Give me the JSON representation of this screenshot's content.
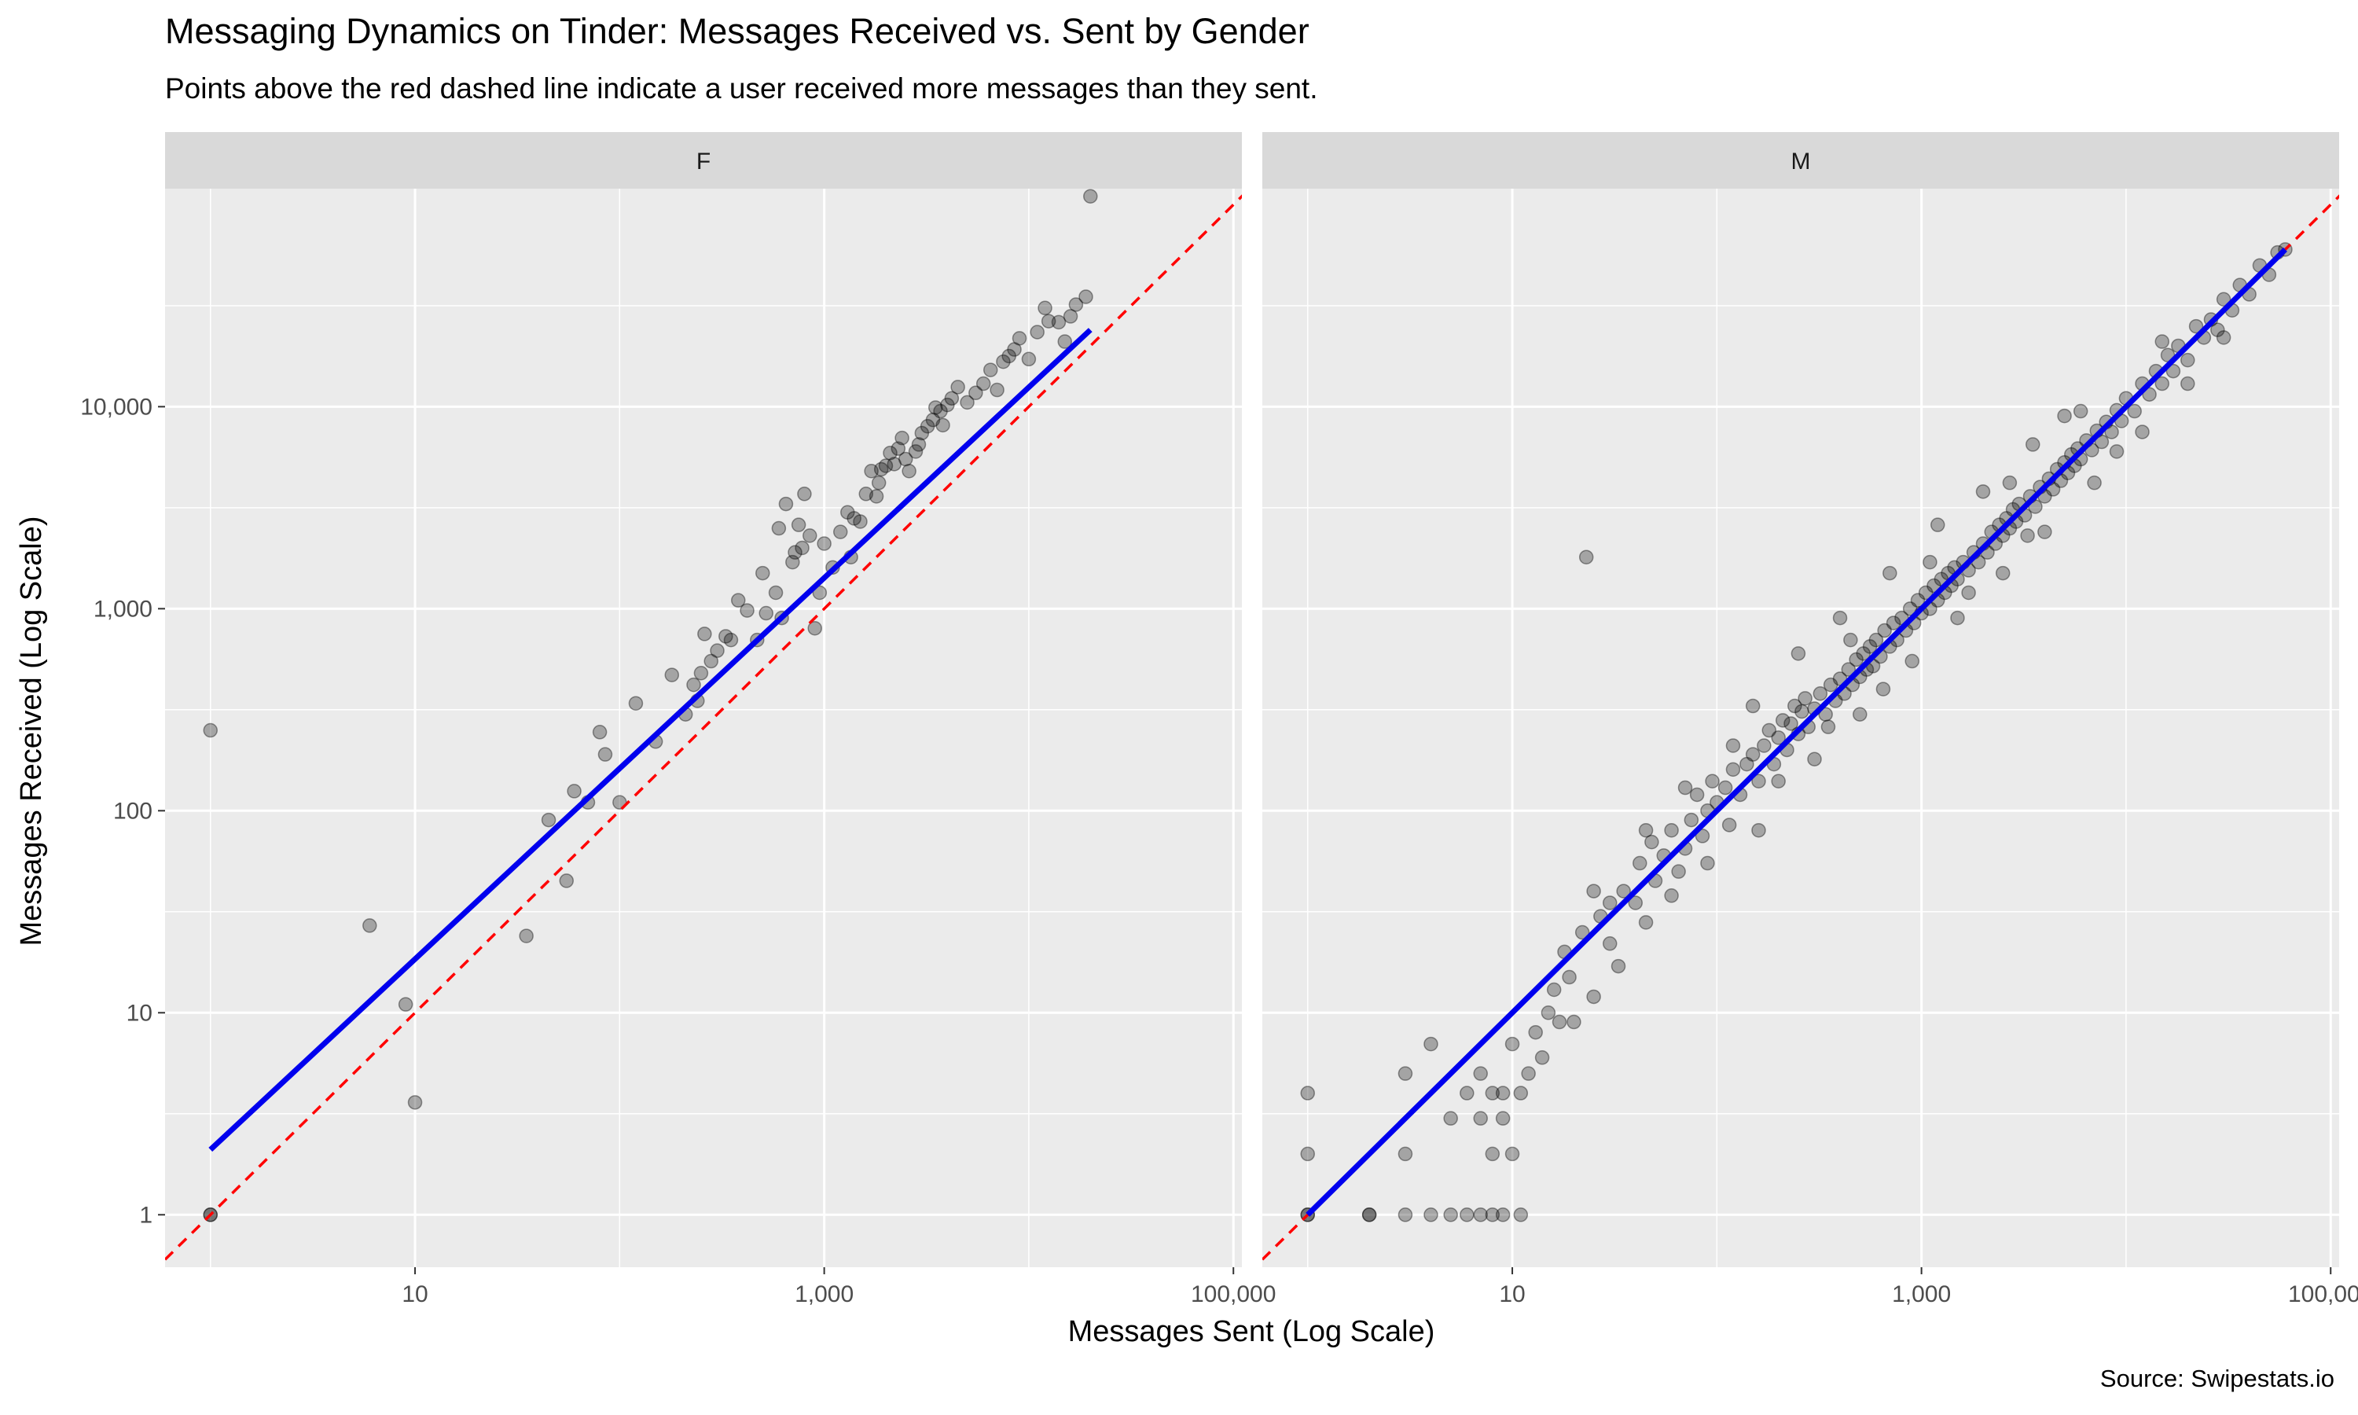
{
  "title": "Messaging Dynamics on Tinder: Messages Received vs. Sent by Gender",
  "subtitle": "Points above the red dashed line indicate a user received more messages than they sent.",
  "caption": "Source: Swipestats.io",
  "colors": {
    "panel_bg": "#EBEBEB",
    "strip_bg": "#D9D9D9",
    "grid": "#FFFFFF",
    "point": "#000000",
    "identity_line": "#FF0000",
    "fit_line": "#0000EE"
  },
  "chart_data": {
    "type": "scatter",
    "xlabel": "Messages Sent (Log Scale)",
    "ylabel": "Messages Received (Log Scale)",
    "x_scale": "log10",
    "y_scale": "log10",
    "xlim": [
      0.6,
      110000
    ],
    "ylim": [
      0.55,
      120000
    ],
    "x_ticks": [
      10,
      1000,
      100000
    ],
    "x_tick_labels": [
      "10",
      "1,000",
      "100,000"
    ],
    "y_ticks": [
      1,
      10,
      100,
      1000,
      10000
    ],
    "y_tick_labels": [
      "1",
      "10",
      "100",
      "1,000",
      "10,000"
    ],
    "grid": true,
    "reference_line": {
      "style": "dashed",
      "color": "#FF0000",
      "slope": 1,
      "intercept": 0
    },
    "panels": [
      {
        "facet": "F",
        "fit": {
          "from": [
            1,
            2.1
          ],
          "to": [
            20000,
            24000
          ]
        },
        "points": [
          [
            1,
            1
          ],
          [
            1,
            1
          ],
          [
            1,
            250
          ],
          [
            6,
            27
          ],
          [
            9,
            11
          ],
          [
            10,
            3.6
          ],
          [
            35,
            24
          ],
          [
            45,
            90
          ],
          [
            55,
            45
          ],
          [
            60,
            125
          ],
          [
            70,
            110
          ],
          [
            80,
            245
          ],
          [
            85,
            190
          ],
          [
            100,
            110
          ],
          [
            120,
            340
          ],
          [
            150,
            220
          ],
          [
            180,
            470
          ],
          [
            210,
            300
          ],
          [
            230,
            420
          ],
          [
            240,
            350
          ],
          [
            250,
            480
          ],
          [
            260,
            750
          ],
          [
            280,
            550
          ],
          [
            300,
            620
          ],
          [
            330,
            730
          ],
          [
            350,
            700
          ],
          [
            380,
            1100
          ],
          [
            420,
            980
          ],
          [
            470,
            700
          ],
          [
            500,
            1500
          ],
          [
            520,
            950
          ],
          [
            580,
            1200
          ],
          [
            600,
            2500
          ],
          [
            620,
            900
          ],
          [
            650,
            3300
          ],
          [
            700,
            1700
          ],
          [
            720,
            1900
          ],
          [
            750,
            2600
          ],
          [
            780,
            2000
          ],
          [
            800,
            3700
          ],
          [
            850,
            2300
          ],
          [
            900,
            800
          ],
          [
            950,
            1200
          ],
          [
            1000,
            2100
          ],
          [
            1100,
            1600
          ],
          [
            1200,
            2400
          ],
          [
            1300,
            3000
          ],
          [
            1350,
            1800
          ],
          [
            1400,
            2800
          ],
          [
            1500,
            2700
          ],
          [
            1600,
            3700
          ],
          [
            1700,
            4800
          ],
          [
            1800,
            3600
          ],
          [
            1850,
            4200
          ],
          [
            1900,
            4900
          ],
          [
            2000,
            5100
          ],
          [
            2100,
            5900
          ],
          [
            2200,
            5200
          ],
          [
            2300,
            6200
          ],
          [
            2400,
            7000
          ],
          [
            2500,
            5500
          ],
          [
            2600,
            4800
          ],
          [
            2800,
            6000
          ],
          [
            2900,
            6500
          ],
          [
            3000,
            7400
          ],
          [
            3200,
            8000
          ],
          [
            3400,
            8600
          ],
          [
            3500,
            9900
          ],
          [
            3700,
            9500
          ],
          [
            3800,
            8100
          ],
          [
            4000,
            10200
          ],
          [
            4200,
            11000
          ],
          [
            4500,
            12500
          ],
          [
            5000,
            10500
          ],
          [
            5500,
            11700
          ],
          [
            6000,
            13000
          ],
          [
            6500,
            15200
          ],
          [
            7000,
            12100
          ],
          [
            7500,
            16700
          ],
          [
            8000,
            17800
          ],
          [
            8500,
            19200
          ],
          [
            9000,
            21800
          ],
          [
            10000,
            17200
          ],
          [
            11000,
            23400
          ],
          [
            12000,
            30800
          ],
          [
            12500,
            26500
          ],
          [
            14000,
            26200
          ],
          [
            15000,
            21000
          ],
          [
            16000,
            28000
          ],
          [
            17000,
            32000
          ],
          [
            19000,
            35000
          ],
          [
            20000,
            110000
          ]
        ]
      },
      {
        "facet": "M",
        "fit": {
          "from": [
            1,
            1
          ],
          "to": [
            60000,
            60000
          ]
        },
        "points": [
          [
            1,
            1
          ],
          [
            1,
            1
          ],
          [
            1,
            2
          ],
          [
            1,
            4
          ],
          [
            2,
            1
          ],
          [
            2,
            1
          ],
          [
            3,
            1
          ],
          [
            3,
            2
          ],
          [
            3,
            5
          ],
          [
            4,
            1
          ],
          [
            4,
            7
          ],
          [
            5,
            1
          ],
          [
            5,
            3
          ],
          [
            6,
            1
          ],
          [
            6,
            4
          ],
          [
            7,
            1
          ],
          [
            7,
            3
          ],
          [
            7,
            5
          ],
          [
            8,
            1
          ],
          [
            8,
            2
          ],
          [
            8,
            4
          ],
          [
            9,
            1
          ],
          [
            9,
            3
          ],
          [
            9,
            4
          ],
          [
            10,
            2
          ],
          [
            10,
            7
          ],
          [
            11,
            1
          ],
          [
            12,
            5
          ],
          [
            13,
            8
          ],
          [
            14,
            6
          ],
          [
            15,
            10
          ],
          [
            16,
            13
          ],
          [
            18,
            20
          ],
          [
            19,
            15
          ],
          [
            20,
            9
          ],
          [
            22,
            25
          ],
          [
            25,
            12
          ],
          [
            27,
            30
          ],
          [
            30,
            22
          ],
          [
            33,
            17
          ],
          [
            35,
            40
          ],
          [
            40,
            35
          ],
          [
            42,
            55
          ],
          [
            45,
            28
          ],
          [
            48,
            70
          ],
          [
            50,
            45
          ],
          [
            55,
            60
          ],
          [
            60,
            80
          ],
          [
            65,
            50
          ],
          [
            70,
            65
          ],
          [
            75,
            90
          ],
          [
            80,
            120
          ],
          [
            85,
            75
          ],
          [
            90,
            100
          ],
          [
            95,
            140
          ],
          [
            100,
            110
          ],
          [
            110,
            130
          ],
          [
            115,
            85
          ],
          [
            120,
            160
          ],
          [
            130,
            120
          ],
          [
            140,
            170
          ],
          [
            150,
            190
          ],
          [
            160,
            140
          ],
          [
            170,
            210
          ],
          [
            180,
            250
          ],
          [
            190,
            170
          ],
          [
            200,
            230
          ],
          [
            210,
            280
          ],
          [
            220,
            200
          ],
          [
            230,
            270
          ],
          [
            240,
            330
          ],
          [
            250,
            240
          ],
          [
            260,
            310
          ],
          [
            270,
            360
          ],
          [
            280,
            260
          ],
          [
            300,
            320
          ],
          [
            320,
            380
          ],
          [
            340,
            300
          ],
          [
            360,
            420
          ],
          [
            380,
            350
          ],
          [
            400,
            450
          ],
          [
            420,
            380
          ],
          [
            440,
            500
          ],
          [
            460,
            420
          ],
          [
            480,
            560
          ],
          [
            500,
            460
          ],
          [
            520,
            600
          ],
          [
            540,
            500
          ],
          [
            560,
            650
          ],
          [
            580,
            520
          ],
          [
            600,
            700
          ],
          [
            630,
            580
          ],
          [
            660,
            780
          ],
          [
            700,
            650
          ],
          [
            730,
            850
          ],
          [
            760,
            700
          ],
          [
            800,
            900
          ],
          [
            840,
            780
          ],
          [
            880,
            1000
          ],
          [
            920,
            850
          ],
          [
            960,
            1100
          ],
          [
            1000,
            950
          ],
          [
            1050,
            1200
          ],
          [
            1100,
            1000
          ],
          [
            1150,
            1300
          ],
          [
            1200,
            1100
          ],
          [
            1250,
            1400
          ],
          [
            1300,
            1200
          ],
          [
            1350,
            1500
          ],
          [
            1400,
            1300
          ],
          [
            1450,
            1600
          ],
          [
            1500,
            1400
          ],
          [
            1600,
            1700
          ],
          [
            1700,
            1550
          ],
          [
            1800,
            1900
          ],
          [
            1900,
            1700
          ],
          [
            2000,
            2100
          ],
          [
            2100,
            1900
          ],
          [
            2200,
            2400
          ],
          [
            2300,
            2100
          ],
          [
            2400,
            2600
          ],
          [
            2500,
            2300
          ],
          [
            2600,
            2800
          ],
          [
            2700,
            2500
          ],
          [
            2800,
            3100
          ],
          [
            2900,
            2700
          ],
          [
            3000,
            3300
          ],
          [
            3200,
            2900
          ],
          [
            3400,
            3600
          ],
          [
            3600,
            3200
          ],
          [
            3800,
            4000
          ],
          [
            4000,
            3600
          ],
          [
            4200,
            4400
          ],
          [
            4400,
            3900
          ],
          [
            4600,
            4900
          ],
          [
            4800,
            4300
          ],
          [
            5000,
            5300
          ],
          [
            5200,
            4700
          ],
          [
            5400,
            5800
          ],
          [
            5600,
            5100
          ],
          [
            5800,
            6200
          ],
          [
            6000,
            5500
          ],
          [
            6400,
            6800
          ],
          [
            6800,
            6100
          ],
          [
            7200,
            7600
          ],
          [
            7600,
            6700
          ],
          [
            8000,
            8400
          ],
          [
            8500,
            7500
          ],
          [
            9000,
            9600
          ],
          [
            9500,
            8500
          ],
          [
            10000,
            11000
          ],
          [
            11000,
            9500
          ],
          [
            12000,
            13000
          ],
          [
            13000,
            11500
          ],
          [
            14000,
            15000
          ],
          [
            15000,
            13000
          ],
          [
            16000,
            18000
          ],
          [
            17000,
            15000
          ],
          [
            18000,
            20000
          ],
          [
            20000,
            17000
          ],
          [
            22000,
            25000
          ],
          [
            24000,
            22000
          ],
          [
            26000,
            27000
          ],
          [
            28000,
            24000
          ],
          [
            30000,
            34000
          ],
          [
            33000,
            30000
          ],
          [
            36000,
            40000
          ],
          [
            40000,
            36000
          ],
          [
            45000,
            50000
          ],
          [
            50000,
            45000
          ],
          [
            55000,
            58000
          ],
          [
            60000,
            60000
          ],
          [
            25,
            40
          ],
          [
            70,
            130
          ],
          [
            150,
            330
          ],
          [
            250,
            600
          ],
          [
            400,
            900
          ],
          [
            700,
            1500
          ],
          [
            1200,
            2600
          ],
          [
            2000,
            3800
          ],
          [
            3500,
            6500
          ],
          [
            5000,
            9000
          ],
          [
            160,
            80
          ],
          [
            300,
            180
          ],
          [
            500,
            300
          ],
          [
            900,
            550
          ],
          [
            1500,
            900
          ],
          [
            2500,
            1500
          ],
          [
            4000,
            2400
          ],
          [
            7000,
            4200
          ],
          [
            12000,
            7500
          ],
          [
            20000,
            13000
          ],
          [
            11,
            4
          ],
          [
            17,
            9
          ],
          [
            30,
            35
          ],
          [
            45,
            80
          ],
          [
            60,
            38
          ],
          [
            90,
            55
          ],
          [
            120,
            210
          ],
          [
            200,
            140
          ],
          [
            350,
            260
          ],
          [
            450,
            700
          ],
          [
            650,
            400
          ],
          [
            1100,
            1700
          ],
          [
            1700,
            1200
          ],
          [
            2700,
            4200
          ],
          [
            3300,
            2300
          ],
          [
            6000,
            9500
          ],
          [
            9000,
            6000
          ],
          [
            15000,
            21000
          ],
          [
            30000,
            22000
          ],
          [
            23,
            1800
          ]
        ]
      }
    ]
  }
}
